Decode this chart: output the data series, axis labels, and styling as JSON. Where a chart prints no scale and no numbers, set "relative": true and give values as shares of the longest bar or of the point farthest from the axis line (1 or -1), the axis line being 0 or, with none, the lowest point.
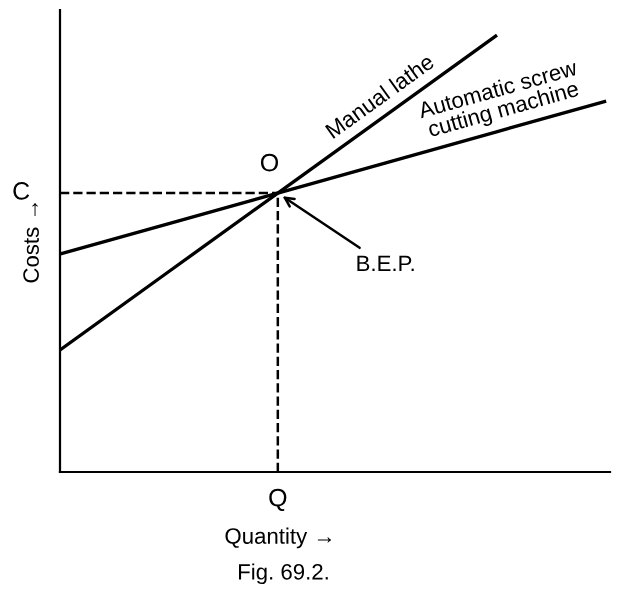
{
  "chart_data": {
    "type": "line",
    "relative": true,
    "xlabel": "Quantity →",
    "ylabel": "Costs →",
    "legend": false,
    "marker": "none",
    "line_style": "solid",
    "categories": [
      null,
      null,
      null,
      null,
      null,
      null
    ],
    "series": [
      {
        "name": "Manual lathe",
        "color": "#000000",
        "values": [
          0.28,
          0.46,
          0.64,
          0.82,
          1.0,
          null
        ]
      },
      {
        "name": "Automatic screw cutting machine",
        "color": "#000000",
        "values": [
          0.5,
          0.57,
          0.64,
          0.71,
          0.78,
          0.85
        ]
      }
    ],
    "ref_lines": [
      {
        "axis": "y",
        "value": 0.64,
        "label": "C",
        "line_style": "dashed"
      }
    ],
    "annotations": [
      "O",
      "B.E.P.",
      "Q",
      "Fig. 69.2."
    ]
  }
}
